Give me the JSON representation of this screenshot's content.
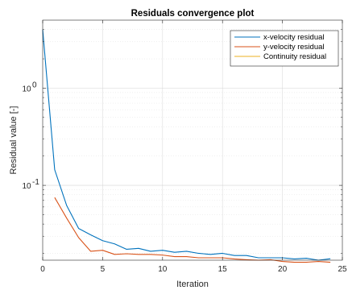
{
  "chart_data": {
    "type": "line",
    "title": "Residuals convergence plot",
    "xlabel": "Iteration",
    "ylabel": "Residual value [-]",
    "xlim": [
      0,
      25
    ],
    "ylim": [
      0.017,
      5
    ],
    "yscale": "log",
    "grid": true,
    "legend_position": "top-right",
    "x_ticks": [
      0,
      5,
      10,
      15,
      20,
      25
    ],
    "x_tick_labels": [
      "0",
      "5",
      "10",
      "15",
      "20",
      "25"
    ],
    "y_ticks": [
      0.1,
      1
    ],
    "y_tick_base": "10",
    "y_tick_exponents": [
      "-1",
      "0"
    ],
    "series": [
      {
        "name": "x-velocity residual",
        "color": "#0072bd",
        "x": [
          0,
          1,
          2,
          3,
          4,
          5,
          6,
          7,
          8,
          9,
          10,
          11,
          12,
          13,
          14,
          15,
          16,
          17,
          18,
          19,
          20,
          21,
          22,
          23,
          24
        ],
        "values": [
          4.0,
          0.145,
          0.062,
          0.036,
          0.031,
          0.027,
          0.025,
          0.022,
          0.0225,
          0.021,
          0.0215,
          0.0205,
          0.021,
          0.02,
          0.0195,
          0.02,
          0.019,
          0.019,
          0.018,
          0.018,
          0.018,
          0.0175,
          0.0178,
          0.017,
          0.0176
        ]
      },
      {
        "name": "y-velocity residual",
        "color": "#d95319",
        "x": [
          1,
          2,
          3,
          4,
          5,
          6,
          7,
          8,
          9,
          10,
          11,
          12,
          13,
          14,
          15,
          16,
          17,
          18,
          19,
          20,
          21,
          22,
          23,
          24
        ],
        "values": [
          0.075,
          0.046,
          0.029,
          0.021,
          0.0215,
          0.0195,
          0.0198,
          0.0195,
          0.0195,
          0.0192,
          0.0185,
          0.0185,
          0.018,
          0.018,
          0.018,
          0.0175,
          0.0172,
          0.017,
          0.0172,
          0.0165,
          0.0162,
          0.0162,
          0.0165,
          0.0162
        ]
      },
      {
        "name": "Continuity residual",
        "color": "#edb120",
        "x": [],
        "values": []
      }
    ]
  }
}
